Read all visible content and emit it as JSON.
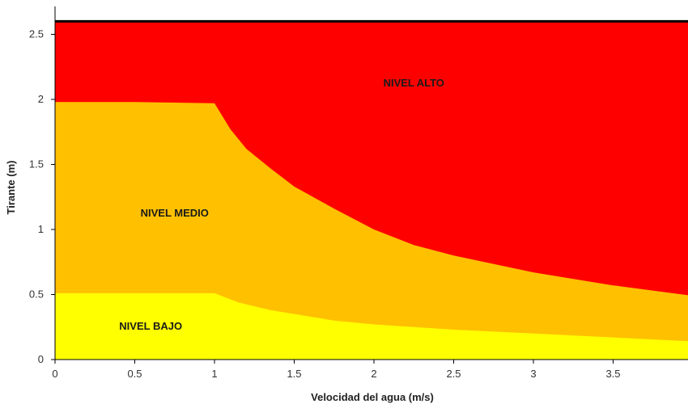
{
  "chart_data": {
    "type": "area",
    "xlabel": "Velocidad del agua (m/s)",
    "ylabel": "Tirante (m)",
    "xlim": [
      0,
      4
    ],
    "ylim": [
      0,
      2.6
    ],
    "x_ticks": [
      0,
      0.5,
      1,
      1.5,
      2,
      2.5,
      3,
      3.5
    ],
    "x_tick_labels": [
      "0",
      "0.5",
      "1",
      "1.5",
      "2",
      "2.5",
      "3",
      "3.5"
    ],
    "y_ticks": [
      0,
      0.5,
      1,
      1.5,
      2,
      2.5
    ],
    "y_tick_labels": [
      "0",
      "0.5",
      "1",
      "1.5",
      "2",
      "2.5"
    ],
    "top_line": 2.6,
    "colors": {
      "alto": "#ff0000",
      "medio": "#ffc000",
      "bajo": "#ffff00",
      "top_line": "#000000"
    },
    "boundaries": {
      "medio_alto": [
        [
          0,
          1.98
        ],
        [
          0.5,
          1.98
        ],
        [
          1.0,
          1.97
        ],
        [
          1.1,
          1.77
        ],
        [
          1.2,
          1.62
        ],
        [
          1.35,
          1.47
        ],
        [
          1.5,
          1.33
        ],
        [
          1.75,
          1.16
        ],
        [
          2.0,
          1.0
        ],
        [
          2.25,
          0.88
        ],
        [
          2.5,
          0.8
        ],
        [
          3.0,
          0.67
        ],
        [
          3.5,
          0.57
        ],
        [
          4.0,
          0.49
        ]
      ],
      "bajo_medio": [
        [
          0,
          0.51
        ],
        [
          0.5,
          0.51
        ],
        [
          1.0,
          0.51
        ],
        [
          1.15,
          0.44
        ],
        [
          1.35,
          0.38
        ],
        [
          1.5,
          0.35
        ],
        [
          1.75,
          0.3
        ],
        [
          2.0,
          0.27
        ],
        [
          2.5,
          0.23
        ],
        [
          3.0,
          0.2
        ],
        [
          3.5,
          0.17
        ],
        [
          4.0,
          0.14
        ]
      ]
    },
    "regions": [
      {
        "label": "NIVEL ALTO",
        "x": 2.25,
        "y": 2.1
      },
      {
        "label": "NIVEL MEDIO",
        "x": 0.75,
        "y": 1.1
      },
      {
        "label": "NIVEL BAJO",
        "x": 0.6,
        "y": 0.23
      }
    ]
  }
}
